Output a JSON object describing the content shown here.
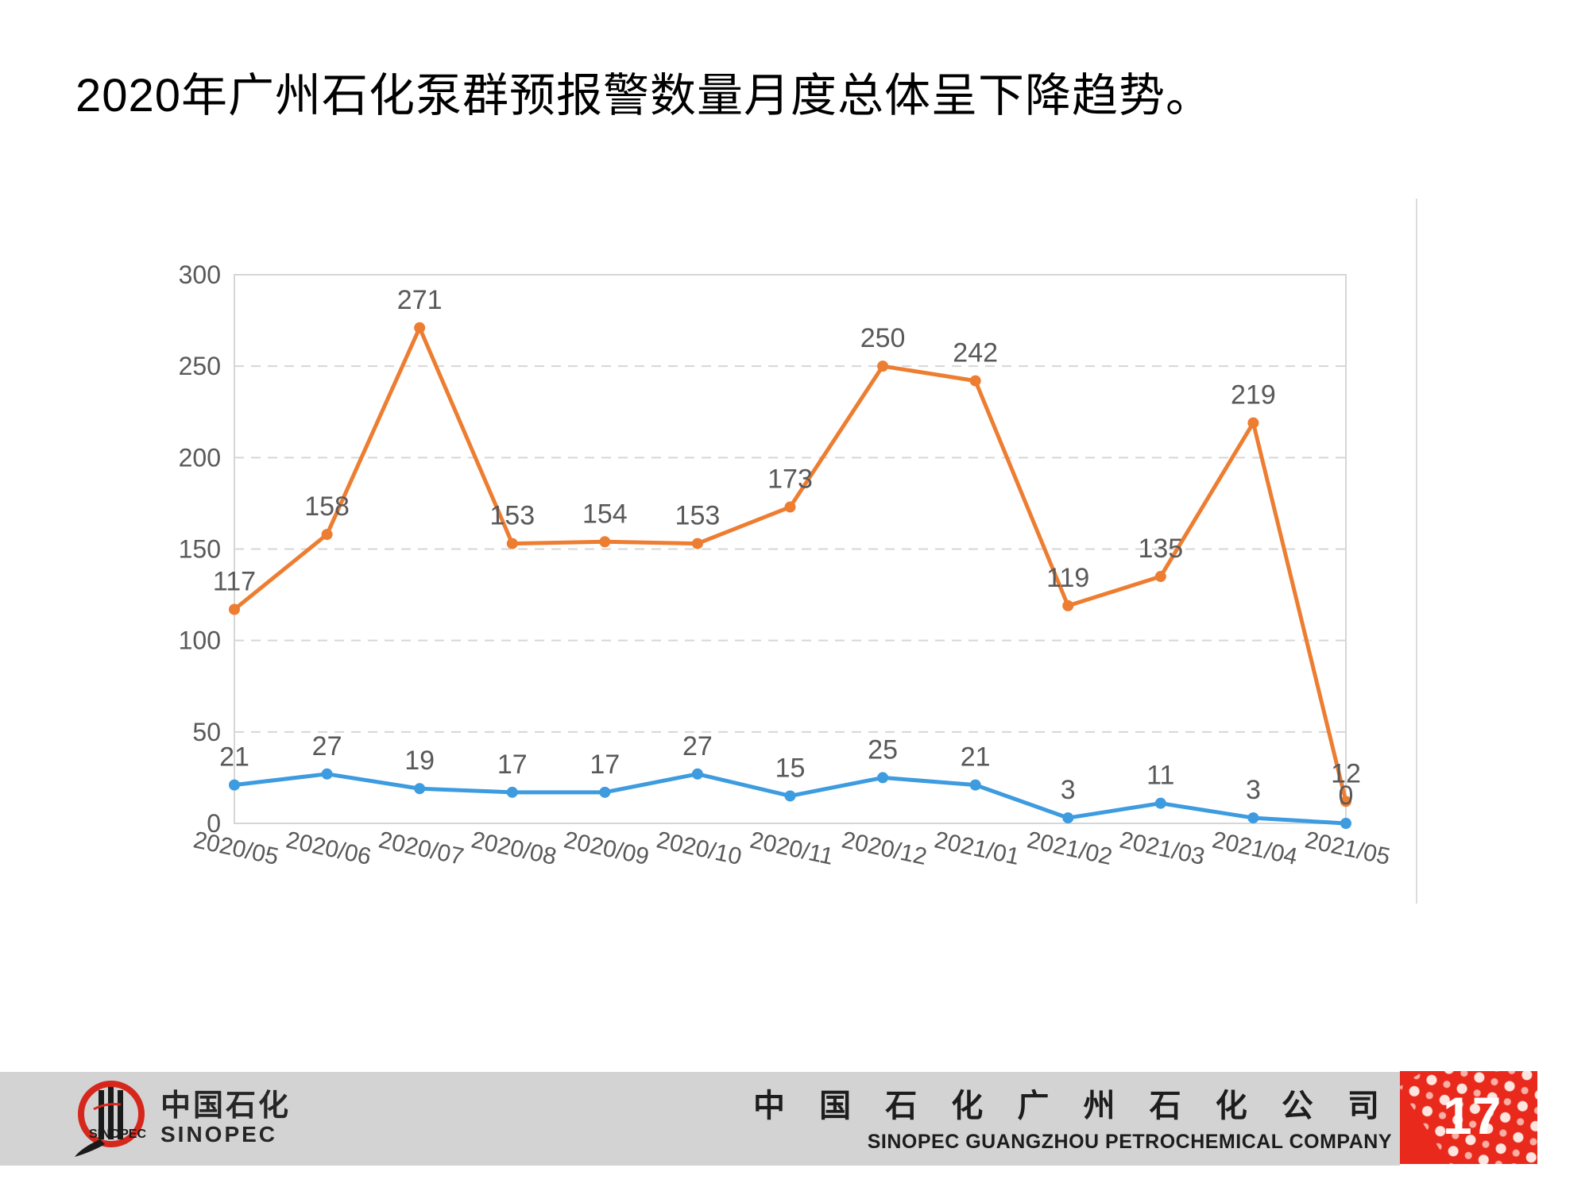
{
  "slide": {
    "title": "2020年广州石化泵群预报警数量月度总体呈下降趋势。"
  },
  "chart_data": {
    "type": "line",
    "title": "",
    "xlabel": "",
    "ylabel": "",
    "categories": [
      "2020/05",
      "2020/06",
      "2020/07",
      "2020/08",
      "2020/09",
      "2020/10",
      "2020/11",
      "2020/12",
      "2021/01",
      "2021/02",
      "2021/03",
      "2021/04",
      "2021/05"
    ],
    "series": [
      {
        "name": "orange-series",
        "color": "#ED7D31",
        "values": [
          117,
          158,
          271,
          153,
          154,
          153,
          173,
          250,
          242,
          119,
          135,
          219,
          12
        ]
      },
      {
        "name": "blue-series",
        "color": "#3D9BDF",
        "values": [
          21,
          27,
          19,
          17,
          17,
          27,
          15,
          25,
          21,
          3,
          11,
          3,
          0
        ]
      }
    ],
    "ylim": [
      0,
      300
    ],
    "yticks": [
      0,
      50,
      100,
      150,
      200,
      250,
      300
    ],
    "grid": "horizontal-dashed",
    "legend_position": "none",
    "data_labels": true,
    "label_color": "#595959",
    "tick_color": "#595959",
    "axis_color": "#d6d6d6"
  },
  "footer": {
    "logo_cn": "中国石化",
    "logo_en": "SINOPEC",
    "logo_mark": "SINOPEC",
    "company_cn": "中 国 石 化 广 州 石 化 公 司",
    "company_en": "SINOPEC GUANGZHOU PETROCHEMICAL COMPANY",
    "page_number": "17",
    "accent_red": "#e8291c",
    "bar_gray": "#d3d3d3"
  }
}
